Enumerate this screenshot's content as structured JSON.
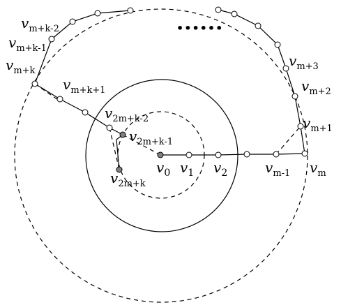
{
  "labels": {
    "v0": {
      "main": "v",
      "sub": "0"
    },
    "v1": {
      "main": "v",
      "sub": "1"
    },
    "v2": {
      "main": "v",
      "sub": "2"
    },
    "vm1": {
      "main": "v",
      "sub": "m-1"
    },
    "vm": {
      "main": "v",
      "sub": "m"
    },
    "vmp1": {
      "main": "v",
      "sub": "m+1"
    },
    "vmp2": {
      "main": "v",
      "sub": "m+2"
    },
    "vmp3": {
      "main": "v",
      "sub": "m+3"
    },
    "vmk2": {
      "main": "v",
      "sub": "m+k-2"
    },
    "vmk1": {
      "main": "v",
      "sub": "m+k-1"
    },
    "vmk": {
      "main": "v",
      "sub": "m+k"
    },
    "vmkp1": {
      "main": "v",
      "sub": "m+k+1"
    },
    "v2mk2": {
      "main": "v",
      "sub": "2m+k-2"
    },
    "v2mk1": {
      "main": "v",
      "sub": "2m+k-1"
    },
    "v2mk": {
      "main": "v",
      "sub": "2m+k"
    }
  },
  "ellipsis": "••••••"
}
